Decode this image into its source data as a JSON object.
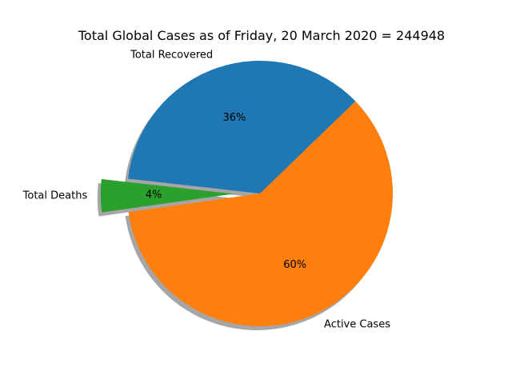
{
  "chart_data": {
    "type": "pie",
    "title": "Total Global Cases as of Friday, 20 March 2020 = 244948",
    "slices": [
      {
        "label": "Total Recovered",
        "percent": 36,
        "pct_label": "36%",
        "color": "#1f77b4",
        "exploded": false
      },
      {
        "label": "Total Deaths",
        "percent": 4,
        "pct_label": "4%",
        "color": "#2ca02c",
        "exploded": true
      },
      {
        "label": "Active Cases",
        "percent": 60,
        "pct_label": "60%",
        "color": "#ff7f0e",
        "exploded": false
      }
    ],
    "shadow": true,
    "legend": "none"
  }
}
